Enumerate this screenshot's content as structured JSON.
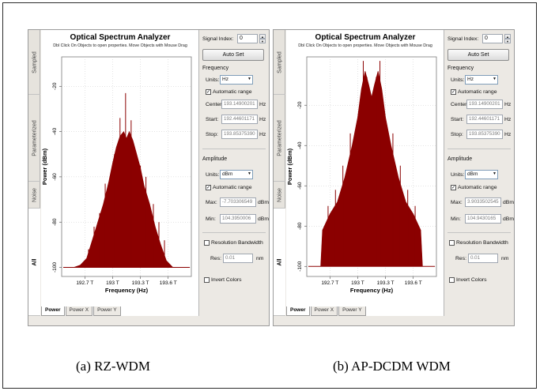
{
  "panels": [
    {
      "id": "a",
      "title": "Optical Spectrum Analyzer",
      "subtitle": "Dbl Click On Objects to open properties.  Move Objects with Mouse Drag",
      "side_tabs": [
        "Sampled",
        "Parameterized",
        "Noise",
        "All"
      ],
      "bottom_tabs": [
        "Power",
        "Power X",
        "Power Y"
      ],
      "signal_index_label": "Signal Index:",
      "signal_index_value": "0",
      "auto_set_label": "Auto Set",
      "frequency": {
        "group_label": "Frequency",
        "units_label": "Units:",
        "units_value": "Hz",
        "auto_range_label": "Automatic range",
        "center_label": "Center:",
        "center_value": "193.14900201",
        "start_label": "Start:",
        "start_value": "192.44601171",
        "stop_label": "Stop:",
        "stop_value": "193.85375390",
        "unit": "Hz"
      },
      "amplitude": {
        "group_label": "Amplitude",
        "units_label": "Units:",
        "units_value": "dBm",
        "auto_range_label": "Automatic range",
        "max_label": "Max:",
        "max_value": "-7.703306549",
        "min_label": "Min:",
        "min_value": "104.3950006",
        "unit": "dBm"
      },
      "resolution_bw_label": "Resolution Bandwidth",
      "res_label": "Res:",
      "res_value": "0.01",
      "res_unit": "nm",
      "invert_colors_label": "Invert Colors",
      "chart_data": {
        "type": "area",
        "xlabel": "Frequency (Hz)",
        "ylabel": "Power (dBm)",
        "x_ticks": [
          "192.7 T",
          "193 T",
          "193.3 T",
          "193.6 T"
        ],
        "x_tick_values": [
          192.7,
          193.0,
          193.3,
          193.6
        ],
        "y_ticks": [
          "-20",
          "-40",
          "-60",
          "-80",
          "-100"
        ],
        "y_tick_values": [
          -20,
          -40,
          -60,
          -80,
          -100
        ],
        "xlim": [
          192.45,
          193.85
        ],
        "ylim": [
          -104,
          -7
        ],
        "grid": true,
        "series_color": "#8b0000",
        "x": [
          192.58,
          192.65,
          192.72,
          192.78,
          192.84,
          192.9,
          192.96,
          193.0,
          193.04,
          193.08,
          193.12,
          193.15,
          193.18,
          193.22,
          193.26,
          193.3,
          193.34,
          193.4,
          193.46,
          193.52,
          193.58,
          193.65
        ],
        "values": [
          -100,
          -99,
          -96,
          -88,
          -80,
          -72,
          -62,
          -54,
          -47,
          -42,
          -40,
          -43,
          -40,
          -44,
          -50,
          -56,
          -64,
          -72,
          -82,
          -90,
          -97,
          -100
        ],
        "spur_x": [
          192.74,
          192.8,
          192.86,
          192.92,
          193.02,
          193.08,
          193.14,
          193.2,
          193.3,
          193.36,
          193.44,
          193.5,
          193.56
        ],
        "spur_values": [
          -92,
          -82,
          -76,
          -63,
          -50,
          -34,
          -23,
          -35,
          -55,
          -60,
          -72,
          -80,
          -88
        ]
      }
    },
    {
      "id": "b",
      "title": "Optical Spectrum Analyzer",
      "subtitle": "Dbl Click On Objects to open properties.  Move Objects with Mouse Drag",
      "side_tabs": [
        "Sampled",
        "Parameterized",
        "Noise",
        "All"
      ],
      "bottom_tabs": [
        "Power",
        "Power X",
        "Power Y"
      ],
      "signal_index_label": "Signal Index:",
      "signal_index_value": "0",
      "auto_set_label": "Auto Set",
      "frequency": {
        "group_label": "Frequency",
        "units_label": "Units:",
        "units_value": "Hz",
        "auto_range_label": "Automatic range",
        "center_label": "Center:",
        "center_value": "193.14900201",
        "start_label": "Start:",
        "start_value": "192.44601171",
        "stop_label": "Stop:",
        "stop_value": "193.85375390",
        "unit": "Hz"
      },
      "amplitude": {
        "group_label": "Amplitude",
        "units_label": "Units:",
        "units_value": "dBm",
        "auto_range_label": "Automatic range",
        "max_label": "Max:",
        "max_value": "3.9033502545",
        "min_label": "Min:",
        "min_value": "104.9430165",
        "unit": "dBm"
      },
      "resolution_bw_label": "Resolution Bandwidth",
      "res_label": "Res:",
      "res_value": "0.01",
      "res_unit": "nm",
      "invert_colors_label": "Invert Colors",
      "chart_data": {
        "type": "area",
        "xlabel": "Frequency (Hz)",
        "ylabel": "Power (dBm)",
        "x_ticks": [
          "192.7 T",
          "193 T",
          "193.3 T",
          "193.6 T"
        ],
        "x_tick_values": [
          192.7,
          193.0,
          193.3,
          193.6
        ],
        "y_ticks": [
          "-20",
          "-40",
          "-60",
          "-80",
          "-100"
        ],
        "y_tick_values": [
          -20,
          -40,
          -60,
          -80,
          -100
        ],
        "xlim": [
          192.45,
          193.85
        ],
        "ylim": [
          -105,
          4
        ],
        "grid": true,
        "series_color": "#8b0000",
        "x": [
          192.6,
          192.62,
          192.7,
          192.78,
          192.86,
          192.94,
          193.0,
          193.04,
          193.08,
          193.12,
          193.15,
          193.18,
          193.22,
          193.26,
          193.3,
          193.36,
          193.44,
          193.52,
          193.6,
          193.68,
          193.7
        ],
        "values": [
          -100,
          -82,
          -74,
          -68,
          -56,
          -40,
          -26,
          -12,
          -3,
          -10,
          -16,
          -10,
          -3,
          -12,
          -26,
          -40,
          -56,
          -68,
          -74,
          -82,
          -100
        ],
        "spur_x": [
          192.68,
          192.76,
          192.84,
          192.92,
          193.06,
          193.1,
          193.2,
          193.24,
          193.38,
          193.46,
          193.54,
          193.62
        ],
        "spur_values": [
          -70,
          -62,
          -50,
          -34,
          2,
          -6,
          -6,
          2,
          -34,
          -50,
          -62,
          -70
        ]
      }
    }
  ],
  "captions": [
    "(a)  RZ-WDM",
    "(b) AP-DCDM WDM"
  ]
}
